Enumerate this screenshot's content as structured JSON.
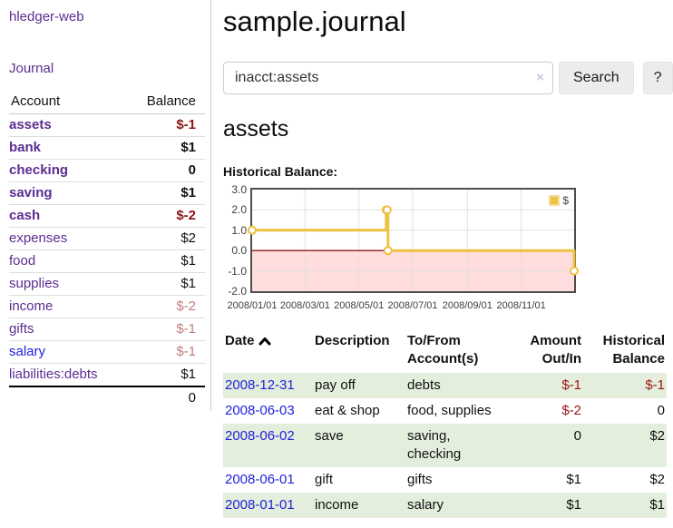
{
  "app": {
    "brand": "hledger-web",
    "nav_journal": "Journal"
  },
  "colors": {
    "link_purple": "#5c2d91",
    "link_blue": "#2222dd",
    "negative_strong": "#8e1414",
    "negative_table": "#9d1616",
    "negative_faded": "#c17d7e",
    "row_green": "#e3eedd",
    "chart_line_gold": "#edc240",
    "chart_negative_region": "#ffdddd",
    "chart_zero_line": "#8b1a1a",
    "chart_grid": "#e0e0e0",
    "chart_border": "#4d4d4d"
  },
  "sidebar": {
    "headers": {
      "account": "Account",
      "balance": "Balance"
    },
    "accounts": [
      {
        "name": "assets",
        "balance": "$-1",
        "depth": 0,
        "in_query": true
      },
      {
        "name": "bank",
        "balance": "$1",
        "depth": 1,
        "in_query": true
      },
      {
        "name": "checking",
        "balance": "0",
        "depth": 2,
        "in_query": true
      },
      {
        "name": "saving",
        "balance": "$1",
        "depth": 2,
        "in_query": true
      },
      {
        "name": "cash",
        "balance": "$-2",
        "depth": 1,
        "in_query": true
      },
      {
        "name": "expenses",
        "balance": "$2",
        "depth": 0,
        "in_query": false
      },
      {
        "name": "food",
        "balance": "$1",
        "depth": 1,
        "in_query": false
      },
      {
        "name": "supplies",
        "balance": "$1",
        "depth": 1,
        "in_query": false
      },
      {
        "name": "income",
        "balance": "$-2",
        "depth": 0,
        "in_query": false
      },
      {
        "name": "gifts",
        "balance": "$-1",
        "depth": 1,
        "in_query": false
      },
      {
        "name": "salary",
        "balance": "$-1",
        "depth": 1,
        "in_query": false
      },
      {
        "name": "liabilities:debts",
        "balance": "$1",
        "depth": 0,
        "in_query": false
      }
    ],
    "total": "0"
  },
  "header": {
    "title": "sample.journal"
  },
  "search": {
    "query": "inacct:assets",
    "clear_icon": "×",
    "search_label": "Search",
    "help_label": "?"
  },
  "account_page": {
    "heading": "assets",
    "chart_title": "Historical Balance:"
  },
  "chart_data": {
    "type": "line",
    "title": "Historical Balance:",
    "series": [
      {
        "name": "$",
        "color": "#edc240",
        "style": "steps",
        "points": [
          [
            "2008-01-01",
            1
          ],
          [
            "2008-06-01",
            2
          ],
          [
            "2008-06-02",
            2
          ],
          [
            "2008-06-03",
            0
          ],
          [
            "2008-12-31",
            -1
          ]
        ]
      }
    ],
    "x_range": [
      "2008-01-01",
      "2008-12-31"
    ],
    "x_ticks": [
      "2008/01/01",
      "2008/03/01",
      "2008/05/01",
      "2008/07/01",
      "2008/09/01",
      "2008/11/01"
    ],
    "y_ticks": [
      3.0,
      2.0,
      1.0,
      0.0,
      -1.0,
      -2.0
    ],
    "ylim": [
      -2,
      3
    ],
    "grid": true,
    "legend_position": "top-right"
  },
  "register": {
    "headers": {
      "date": "Date",
      "description": "Description",
      "accounts": "To/From\nAccount(s)",
      "amount": "Amount\nOut/In",
      "balance": "Historical\nBalance"
    },
    "rows": [
      {
        "date": "2008-12-31",
        "description": "pay off",
        "accounts": "debts",
        "amount": "$-1",
        "balance": "$-1"
      },
      {
        "date": "2008-06-03",
        "description": "eat & shop",
        "accounts": "food, supplies",
        "amount": "$-2",
        "balance": "0"
      },
      {
        "date": "2008-06-02",
        "description": "save",
        "accounts": "saving,\nchecking",
        "amount": "0",
        "balance": "$2"
      },
      {
        "date": "2008-06-01",
        "description": "gift",
        "accounts": "gifts",
        "amount": "$1",
        "balance": "$2"
      },
      {
        "date": "2008-01-01",
        "description": "income",
        "accounts": "salary",
        "amount": "$1",
        "balance": "$1"
      }
    ]
  }
}
